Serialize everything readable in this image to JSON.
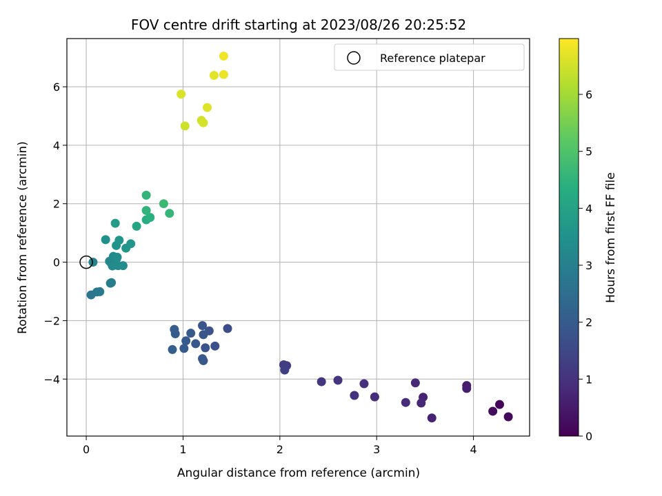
{
  "chart_data": {
    "type": "scatter",
    "title": "FOV centre drift starting at 2023/08/26 20:25:52",
    "xlabel": "Angular distance from reference (arcmin)",
    "ylabel": "Rotation from reference (arcmin)",
    "xlim": [
      -0.2,
      4.58
    ],
    "ylim": [
      -5.95,
      7.65
    ],
    "xticks": [
      0,
      1,
      2,
      3,
      4
    ],
    "yticks": [
      -4,
      -2,
      0,
      2,
      4,
      6
    ],
    "grid": true,
    "legend": {
      "position": "top-right",
      "entries": [
        "Reference platepar"
      ]
    },
    "reference_point": {
      "x": 0,
      "y": 0
    },
    "colorbar": {
      "label": "Hours from first FF file",
      "range": [
        0,
        6.98
      ],
      "ticks": [
        0,
        1,
        2,
        3,
        4,
        5,
        6
      ],
      "colormap": "viridis"
    },
    "points": [
      {
        "x": 4.27,
        "y": -4.87,
        "c": 0.1
      },
      {
        "x": 4.36,
        "y": -5.29,
        "c": 0.15
      },
      {
        "x": 4.2,
        "y": -5.1,
        "c": 0.2
      },
      {
        "x": 3.93,
        "y": -4.22,
        "c": 0.55
      },
      {
        "x": 3.93,
        "y": -4.32,
        "c": 0.6
      },
      {
        "x": 3.57,
        "y": -5.33,
        "c": 0.65
      },
      {
        "x": 3.48,
        "y": -4.62,
        "c": 0.7
      },
      {
        "x": 3.46,
        "y": -4.82,
        "c": 0.75
      },
      {
        "x": 3.4,
        "y": -4.13,
        "c": 0.8
      },
      {
        "x": 3.3,
        "y": -4.8,
        "c": 0.85
      },
      {
        "x": 2.98,
        "y": -4.61,
        "c": 0.9
      },
      {
        "x": 2.87,
        "y": -4.16,
        "c": 0.95
      },
      {
        "x": 2.77,
        "y": -4.56,
        "c": 1.0
      },
      {
        "x": 2.6,
        "y": -4.04,
        "c": 1.05
      },
      {
        "x": 2.43,
        "y": -4.09,
        "c": 1.1
      },
      {
        "x": 2.07,
        "y": -3.54,
        "c": 1.2
      },
      {
        "x": 2.04,
        "y": -3.51,
        "c": 1.25
      },
      {
        "x": 2.05,
        "y": -3.69,
        "c": 1.3
      },
      {
        "x": 1.46,
        "y": -2.27,
        "c": 1.65
      },
      {
        "x": 1.33,
        "y": -2.87,
        "c": 1.7
      },
      {
        "x": 1.27,
        "y": -2.35,
        "c": 1.75
      },
      {
        "x": 1.23,
        "y": -2.93,
        "c": 1.8
      },
      {
        "x": 1.2,
        "y": -2.17,
        "c": 1.82
      },
      {
        "x": 1.21,
        "y": -2.48,
        "c": 1.85
      },
      {
        "x": 1.2,
        "y": -3.3,
        "c": 1.87
      },
      {
        "x": 1.21,
        "y": -3.37,
        "c": 1.9
      },
      {
        "x": 1.13,
        "y": -2.79,
        "c": 1.92
      },
      {
        "x": 1.08,
        "y": -2.43,
        "c": 1.95
      },
      {
        "x": 1.03,
        "y": -2.69,
        "c": 1.97
      },
      {
        "x": 1.01,
        "y": -2.95,
        "c": 2.0
      },
      {
        "x": 0.92,
        "y": -2.45,
        "c": 2.02
      },
      {
        "x": 0.91,
        "y": -2.3,
        "c": 2.05
      },
      {
        "x": 0.89,
        "y": -2.99,
        "c": 2.1
      },
      {
        "x": 0.05,
        "y": -1.12,
        "c": 2.7
      },
      {
        "x": 0.11,
        "y": -1.02,
        "c": 2.75
      },
      {
        "x": 0.14,
        "y": -1.01,
        "c": 2.8
      },
      {
        "x": 0.25,
        "y": -0.72,
        "c": 2.9
      },
      {
        "x": 0.26,
        "y": -0.7,
        "c": 2.92
      },
      {
        "x": 0.07,
        "y": 0.0,
        "c": 3.05
      },
      {
        "x": 0.24,
        "y": 0.03,
        "c": 3.2
      },
      {
        "x": 0.26,
        "y": -0.05,
        "c": 3.22
      },
      {
        "x": 0.27,
        "y": -0.13,
        "c": 3.24
      },
      {
        "x": 0.28,
        "y": 0.2,
        "c": 3.26
      },
      {
        "x": 0.3,
        "y": -0.1,
        "c": 3.28
      },
      {
        "x": 0.31,
        "y": 0.09,
        "c": 3.3
      },
      {
        "x": 0.33,
        "y": -0.12,
        "c": 3.32
      },
      {
        "x": 0.32,
        "y": 0.17,
        "c": 3.34
      },
      {
        "x": 0.38,
        "y": -0.12,
        "c": 3.36
      },
      {
        "x": 0.2,
        "y": 0.77,
        "c": 3.5
      },
      {
        "x": 0.31,
        "y": 0.57,
        "c": 3.55
      },
      {
        "x": 0.34,
        "y": 0.75,
        "c": 3.6
      },
      {
        "x": 0.41,
        "y": 0.48,
        "c": 3.62
      },
      {
        "x": 0.46,
        "y": 0.63,
        "c": 3.65
      },
      {
        "x": 0.3,
        "y": 1.33,
        "c": 3.8
      },
      {
        "x": 0.52,
        "y": 1.23,
        "c": 4.1
      },
      {
        "x": 0.62,
        "y": 1.45,
        "c": 4.3
      },
      {
        "x": 0.66,
        "y": 1.53,
        "c": 4.4
      },
      {
        "x": 0.62,
        "y": 1.77,
        "c": 4.5
      },
      {
        "x": 0.62,
        "y": 2.29,
        "c": 4.55
      },
      {
        "x": 0.86,
        "y": 1.67,
        "c": 4.6
      },
      {
        "x": 0.8,
        "y": 2.0,
        "c": 4.7
      },
      {
        "x": 1.02,
        "y": 4.66,
        "c": 6.45
      },
      {
        "x": 1.19,
        "y": 4.85,
        "c": 6.5
      },
      {
        "x": 1.21,
        "y": 4.77,
        "c": 6.55
      },
      {
        "x": 0.98,
        "y": 5.75,
        "c": 6.6
      },
      {
        "x": 1.25,
        "y": 5.29,
        "c": 6.65
      },
      {
        "x": 1.32,
        "y": 6.39,
        "c": 6.7
      },
      {
        "x": 1.42,
        "y": 6.42,
        "c": 6.8
      },
      {
        "x": 1.42,
        "y": 7.05,
        "c": 6.85
      }
    ]
  }
}
